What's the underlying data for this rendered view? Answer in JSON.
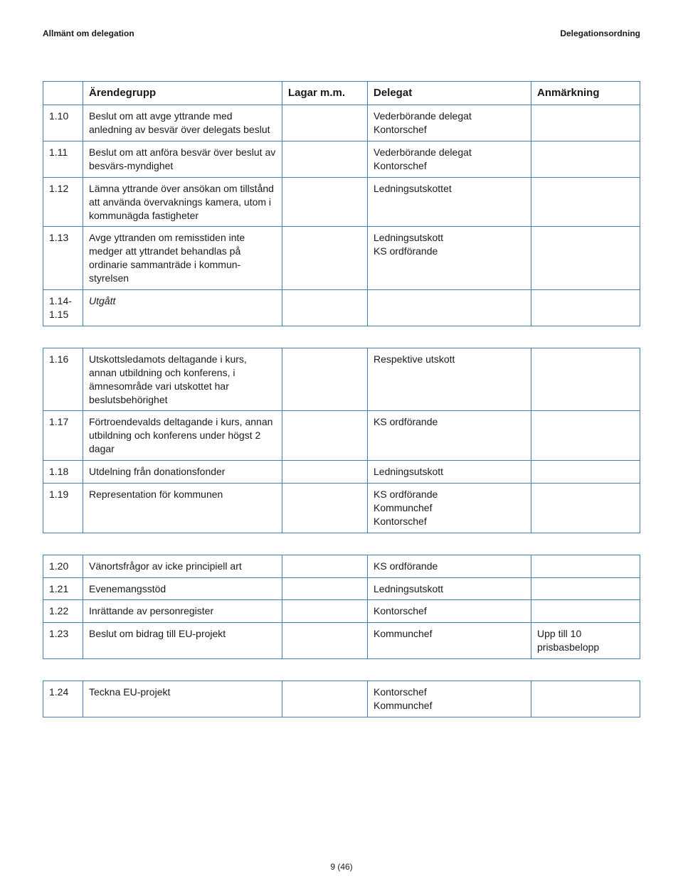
{
  "header": {
    "left": "Allmänt om delegation",
    "right": "Delegationsordning"
  },
  "columns": {
    "c1": "",
    "c2": "Ärendegrupp",
    "c3": "Lagar m.m.",
    "c4": "Delegat",
    "c5": "Anmärkning"
  },
  "rowsA": [
    {
      "id": "1.10",
      "arende": "Beslut om att avge yttrande med anledning av besvär över delegats beslut",
      "lagar": "",
      "delegat": "Vederbörande delegat\nKontorschef",
      "anm": ""
    },
    {
      "id": "1.11",
      "arende": "Beslut om att anföra besvär över beslut av besvärs-myndighet",
      "lagar": "",
      "delegat": "Vederbörande delegat\nKontorschef",
      "anm": ""
    },
    {
      "id": "1.12",
      "arende": "Lämna yttrande över ansökan om tillstånd att använda övervaknings kamera, utom i kommunägda fastigheter",
      "lagar": "",
      "delegat": "Ledningsutskottet",
      "anm": ""
    },
    {
      "id": "1.13",
      "arende": "Avge yttranden om remisstiden inte medger att yttrandet behandlas på ordinarie sammanträde i kommun-styrelsen",
      "lagar": "",
      "delegat": "Ledningsutskott\nKS ordförande",
      "anm": ""
    },
    {
      "id": "1.14-\n1.15",
      "arende": "Utgått",
      "lagar": "",
      "delegat": "",
      "anm": "",
      "italic": true
    }
  ],
  "rowsB": [
    {
      "id": "1.16",
      "arende": "Utskottsledamots deltagande i kurs, annan utbildning och konferens, i ämnesområde vari utskottet har beslutsbehörighet",
      "lagar": "",
      "delegat": "Respektive utskott",
      "anm": ""
    },
    {
      "id": "1.17",
      "arende": "Förtroendevalds deltagande i kurs, annan utbildning och konferens under högst 2 dagar",
      "lagar": "",
      "delegat": "KS ordförande",
      "anm": ""
    },
    {
      "id": "1.18",
      "arende": "Utdelning från donationsfonder",
      "lagar": "",
      "delegat": "Ledningsutskott",
      "anm": ""
    },
    {
      "id": "1.19",
      "arende": "Representation för kommunen",
      "lagar": "",
      "delegat": "KS ordförande\nKommunchef\nKontorschef",
      "anm": ""
    }
  ],
  "rowsC": [
    {
      "id": "1.20",
      "arende": "Vänortsfrågor av icke principiell art",
      "lagar": "",
      "delegat": "KS ordförande",
      "anm": ""
    },
    {
      "id": "1.21",
      "arende": "Evenemangsstöd",
      "lagar": "",
      "delegat": "Ledningsutskott",
      "anm": ""
    },
    {
      "id": "1.22",
      "arende": "Inrättande av personregister",
      "lagar": "",
      "delegat": "Kontorschef",
      "anm": ""
    },
    {
      "id": "1.23",
      "arende": "Beslut om bidrag till EU-projekt",
      "lagar": "",
      "delegat": "Kommunchef",
      "anm": "Upp till 10 prisbasbelopp"
    }
  ],
  "rowsD": [
    {
      "id": "1.24",
      "arende": "Teckna EU-projekt",
      "lagar": "",
      "delegat": "Kontorschef\nKommunchef",
      "anm": ""
    }
  ],
  "pagenum": "9 (46)",
  "style": {
    "border_color": "#3b7fb5",
    "font_body": 14,
    "font_header": 12
  }
}
